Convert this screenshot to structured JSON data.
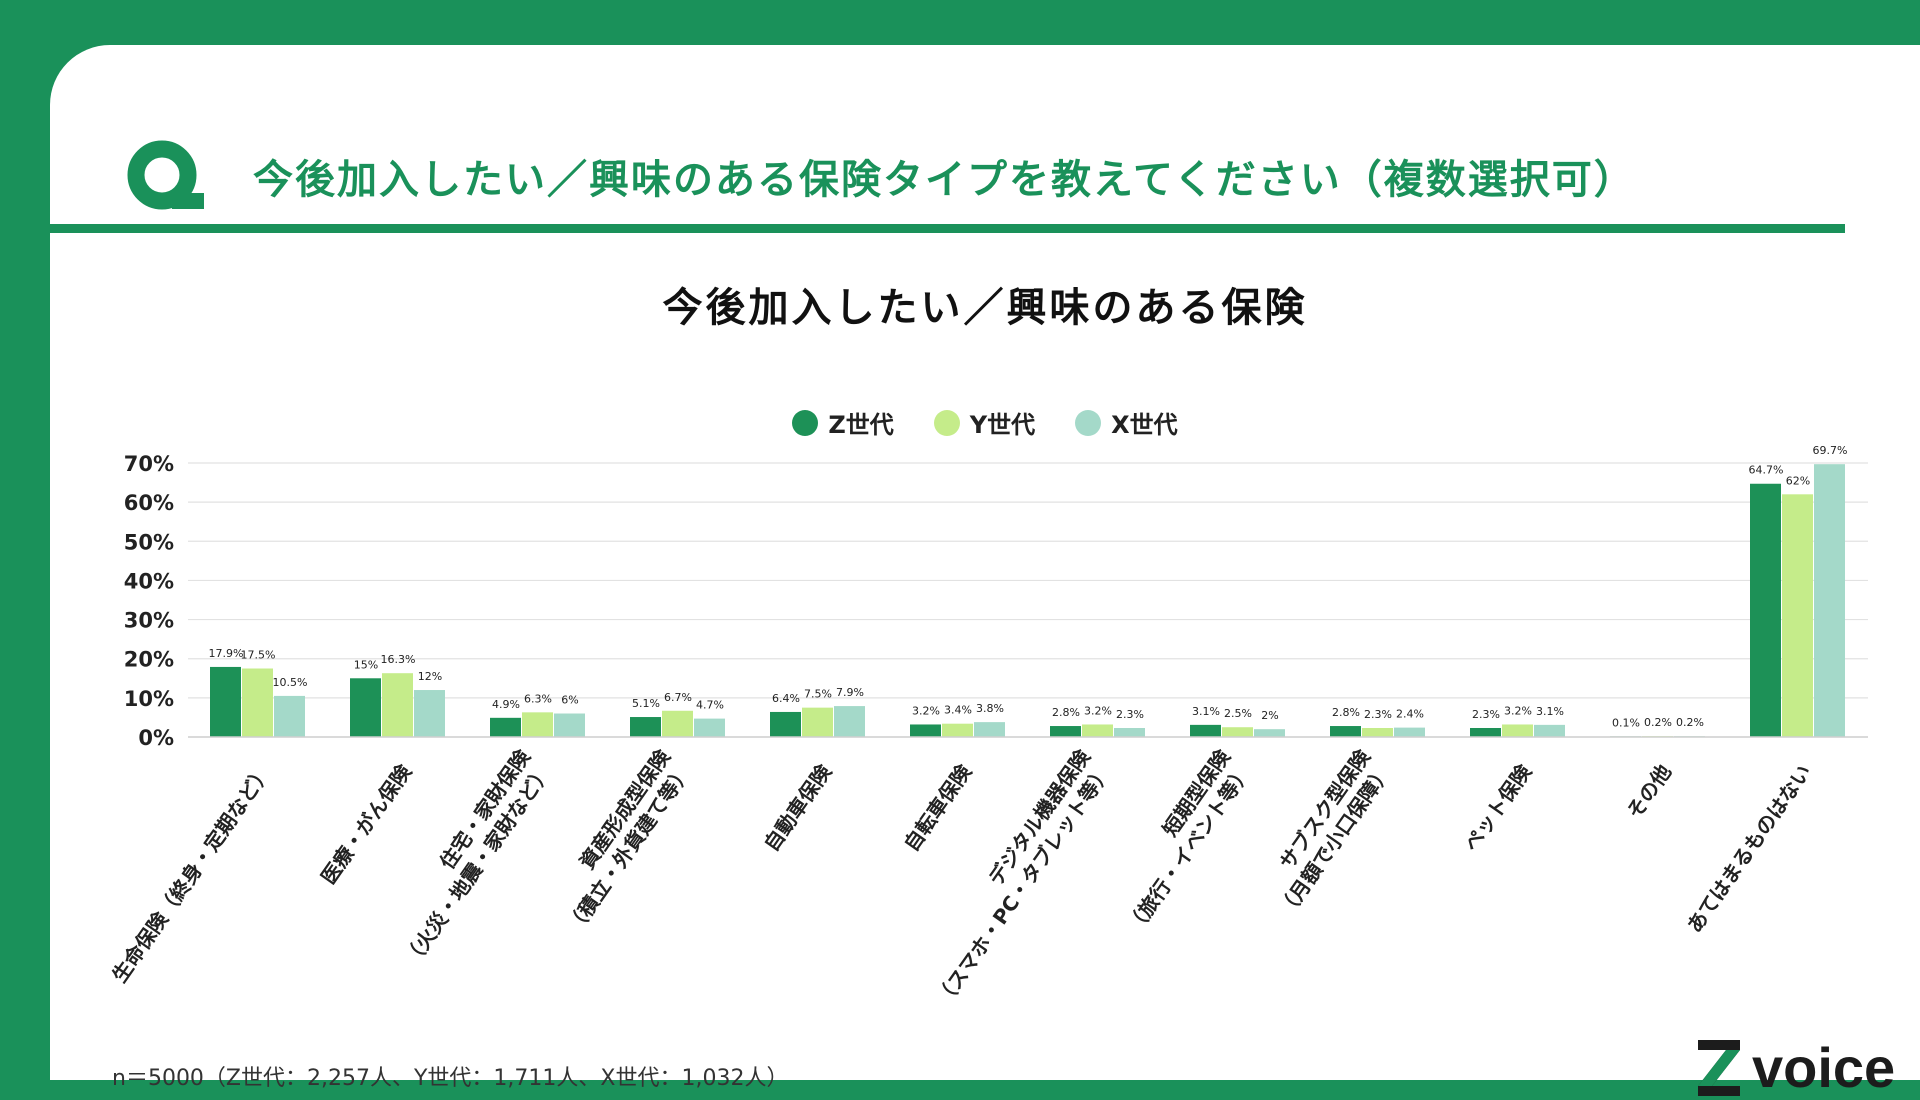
{
  "question": "今後加入したい／興味のある保険タイプを教えてください（複数選択可）",
  "note": "n＝5000（Z世代：2,257人、Y世代：1,711人、X世代：1,032人）",
  "logo_text": "voice",
  "colors": {
    "accent": "#1a915a",
    "z": "#1d9157",
    "y": "#c5ec8a",
    "x": "#a4d9c9"
  },
  "chart_data": {
    "type": "bar",
    "title": "今後加入したい／興味のある保険",
    "categories": [
      "生命保険（終身・定期など）",
      "医療・がん保険",
      "住宅・家財保険\n（火災・地震・家財など）",
      "資産形成型保険\n（積立・外貨建て等）",
      "自動車保険",
      "自転車保険",
      "デジタル機器保険\n（スマホ・PC・タブレット等）",
      "短期型保険\n（旅行・イベント等）",
      "サブスク型保険\n（月額で小口保障）",
      "ペット保険",
      "その他",
      "あてはまるものはない"
    ],
    "series": [
      {
        "name": "Z世代",
        "color": "#1d9157",
        "values": [
          17.9,
          15,
          4.9,
          5.1,
          6.4,
          3.2,
          2.8,
          3.1,
          2.8,
          2.3,
          0.1,
          64.7
        ],
        "labels": [
          "17.9%",
          "15%",
          "4.9%",
          "5.1%",
          "6.4%",
          "3.2%",
          "2.8%",
          "3.1%",
          "2.8%",
          "2.3%",
          "0.1%",
          "64.7%"
        ]
      },
      {
        "name": "Y世代",
        "color": "#c5ec8a",
        "values": [
          17.5,
          16.3,
          6.3,
          6.7,
          7.5,
          3.4,
          3.2,
          2.5,
          2.3,
          3.2,
          0.2,
          62
        ],
        "labels": [
          "17.5%",
          "16.3%",
          "6.3%",
          "6.7%",
          "7.5%",
          "3.4%",
          "3.2%",
          "2.5%",
          "2.3%",
          "3.2%",
          "0.2%",
          "62%"
        ]
      },
      {
        "name": "X世代",
        "color": "#a4d9c9",
        "values": [
          10.5,
          12,
          6,
          4.7,
          7.9,
          3.8,
          2.3,
          2,
          2.4,
          3.1,
          0.2,
          69.7
        ],
        "labels": [
          "10.5%",
          "12%",
          "6%",
          "4.7%",
          "7.9%",
          "3.8%",
          "2.3%",
          "2%",
          "2.4%",
          "3.1%",
          "0.2%",
          "69.7%"
        ]
      }
    ],
    "yticks": [
      "0%",
      "10%",
      "20%",
      "30%",
      "40%",
      "50%",
      "60%",
      "70%"
    ],
    "ylim": [
      0,
      70
    ],
    "grid": true,
    "legend": "top-center"
  }
}
